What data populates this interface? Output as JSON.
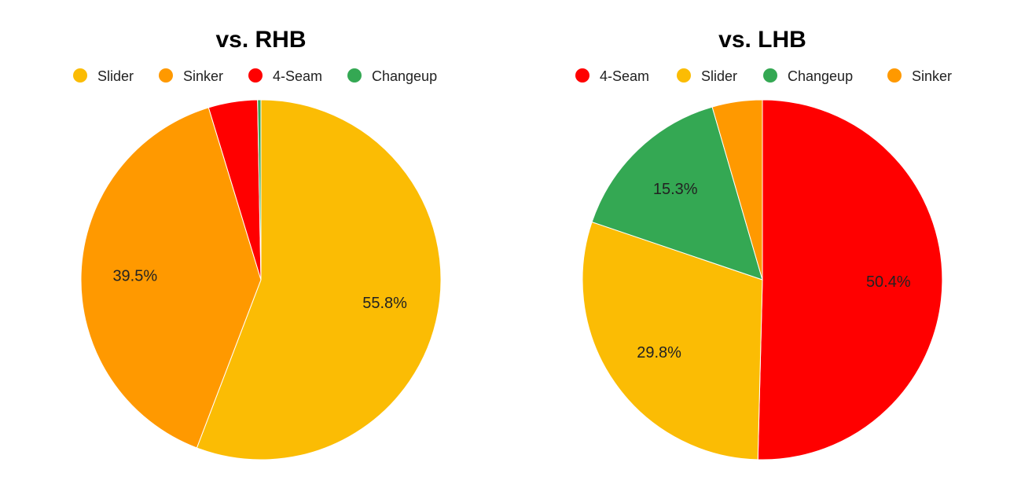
{
  "chart_data": [
    {
      "type": "pie",
      "title": "vs. RHB",
      "legend_position": "top",
      "categories": [
        "Slider",
        "Sinker",
        "4-Seam",
        "Changeup"
      ],
      "values": [
        55.8,
        39.5,
        4.4,
        0.3
      ],
      "colors": [
        "#fbbc04",
        "#ff9900",
        "#ff0000",
        "#34a853"
      ],
      "data_labels": [
        "55.8%",
        "39.5%",
        "",
        ""
      ]
    },
    {
      "type": "pie",
      "title": "vs. LHB",
      "legend_position": "top",
      "categories": [
        "4-Seam",
        "Slider",
        "Changeup",
        "Sinker"
      ],
      "values": [
        50.4,
        29.8,
        15.3,
        4.5
      ],
      "colors": [
        "#ff0000",
        "#fbbc04",
        "#34a853",
        "#ff9900"
      ],
      "data_labels": [
        "50.4%",
        "29.8%",
        "15.3%",
        ""
      ]
    }
  ]
}
